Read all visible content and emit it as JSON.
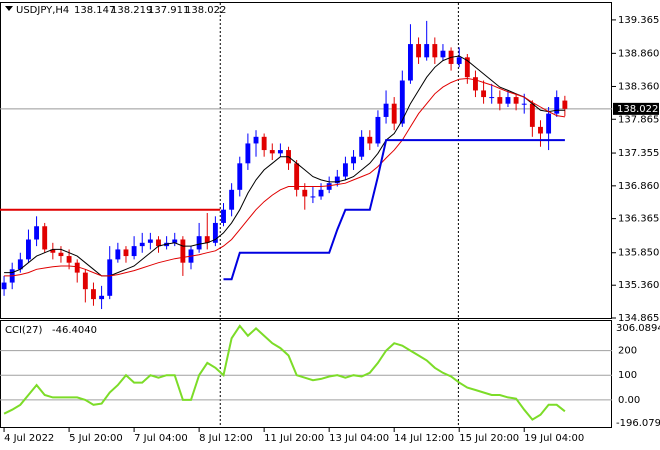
{
  "chart_data": [
    {
      "type": "candlestick",
      "symbol": "USDJPY,H4",
      "bull_color": "#0000ff",
      "bear_color": "#e00000",
      "xlim": [
        -0.5,
        74.8
      ],
      "ylim": [
        134.865,
        139.62
      ],
      "yticks": [
        139.365,
        {
          "value": 138.86,
          "label": "138.860"
        },
        {
          "value": 138.36,
          "label": "138.360"
        },
        137.865,
        137.355,
        {
          "value": 136.86,
          "label": "136.860"
        },
        136.365,
        {
          "value": 135.85,
          "label": "135.850"
        },
        {
          "value": 135.36,
          "label": "135.360"
        },
        134.865
      ],
      "xticks": [
        {
          "value": 0,
          "label": "4 Jul 2022"
        },
        {
          "value": 8,
          "label": "5 Jul 20:00"
        },
        {
          "value": 16,
          "label": "7 Jul 04:00"
        },
        {
          "value": 24,
          "label": "8 Jul 12:00"
        },
        {
          "value": 32,
          "label": "11 Jul 20:00"
        },
        {
          "value": 40,
          "label": "13 Jul 04:00"
        },
        {
          "value": 48,
          "label": "14 Jul 12:00"
        },
        {
          "value": 56,
          "label": "15 Jul 20:00"
        },
        {
          "value": 64,
          "label": "19 Jul 04:00"
        }
      ],
      "period_separators": [
        26.6,
        55.9
      ],
      "ohlc": [
        [
          135.3,
          135.5,
          135.2,
          135.4
        ],
        [
          135.4,
          135.7,
          135.3,
          135.6
        ],
        [
          135.6,
          135.85,
          135.55,
          135.75
        ],
        [
          135.75,
          136.2,
          135.7,
          136.05
        ],
        [
          136.05,
          136.4,
          135.95,
          136.25
        ],
        [
          136.25,
          136.3,
          135.85,
          135.9
        ],
        [
          135.9,
          136.0,
          135.75,
          135.85
        ],
        [
          135.85,
          135.95,
          135.7,
          135.8
        ],
        [
          135.8,
          135.9,
          135.6,
          135.7
        ],
        [
          135.7,
          135.75,
          135.4,
          135.55
        ],
        [
          135.55,
          135.6,
          135.1,
          135.3
        ],
        [
          135.3,
          135.4,
          135.05,
          135.15
        ],
        [
          135.15,
          135.35,
          135.0,
          135.2
        ],
        [
          135.2,
          135.95,
          135.15,
          135.75
        ],
        [
          135.75,
          136.0,
          135.7,
          135.9
        ],
        [
          135.9,
          135.95,
          135.7,
          135.8
        ],
        [
          135.8,
          136.1,
          135.75,
          135.95
        ],
        [
          135.95,
          136.15,
          135.85,
          136.0
        ],
        [
          136.0,
          136.15,
          135.9,
          136.05
        ],
        [
          136.05,
          136.1,
          135.85,
          135.95
        ],
        [
          135.95,
          136.1,
          135.9,
          136.0
        ],
        [
          136.0,
          136.15,
          135.95,
          136.05
        ],
        [
          136.05,
          136.1,
          135.5,
          135.7
        ],
        [
          135.7,
          135.95,
          135.6,
          135.9
        ],
        [
          135.9,
          136.3,
          135.85,
          136.1
        ],
        [
          136.1,
          136.45,
          135.9,
          136.0
        ],
        [
          136.0,
          136.4,
          135.95,
          136.3
        ],
        [
          136.3,
          136.6,
          136.25,
          136.5
        ],
        [
          136.5,
          136.9,
          136.4,
          136.8
        ],
        [
          136.8,
          137.3,
          136.7,
          137.2
        ],
        [
          137.2,
          137.65,
          137.1,
          137.5
        ],
        [
          137.5,
          137.7,
          137.3,
          137.6
        ],
        [
          137.6,
          137.65,
          137.3,
          137.4
        ],
        [
          137.4,
          137.5,
          137.25,
          137.35
        ],
        [
          137.35,
          137.5,
          137.3,
          137.4
        ],
        [
          137.4,
          137.45,
          137.1,
          137.2
        ],
        [
          137.2,
          137.25,
          136.7,
          136.8
        ],
        [
          136.8,
          136.9,
          136.5,
          136.7
        ],
        [
          136.7,
          136.85,
          136.6,
          136.7
        ],
        [
          136.7,
          136.9,
          136.65,
          136.8
        ],
        [
          136.8,
          137.0,
          136.75,
          136.9
        ],
        [
          136.9,
          137.1,
          136.85,
          137.0
        ],
        [
          137.0,
          137.3,
          136.95,
          137.2
        ],
        [
          137.2,
          137.4,
          137.1,
          137.3
        ],
        [
          137.3,
          137.7,
          137.25,
          137.6
        ],
        [
          137.6,
          137.7,
          137.4,
          137.5
        ],
        [
          137.5,
          138.0,
          137.45,
          137.9
        ],
        [
          137.9,
          138.3,
          137.8,
          138.1
        ],
        [
          138.1,
          138.2,
          137.7,
          137.8
        ],
        [
          137.8,
          138.6,
          137.75,
          138.45
        ],
        [
          138.45,
          139.3,
          138.4,
          139.0
        ],
        [
          139.0,
          139.1,
          138.7,
          138.8
        ],
        [
          138.8,
          139.35,
          138.75,
          139.0
        ],
        [
          139.0,
          139.1,
          138.7,
          138.8
        ],
        [
          138.8,
          139.0,
          138.75,
          138.9
        ],
        [
          138.9,
          138.95,
          138.6,
          138.7
        ],
        [
          138.7,
          138.95,
          138.65,
          138.8
        ],
        [
          138.8,
          138.85,
          138.4,
          138.5
        ],
        [
          138.5,
          138.6,
          138.2,
          138.3
        ],
        [
          138.3,
          138.45,
          138.1,
          138.2
        ],
        [
          138.2,
          138.4,
          138.1,
          138.2
        ],
        [
          138.2,
          138.3,
          138.0,
          138.1
        ],
        [
          138.1,
          138.3,
          138.05,
          138.2
        ],
        [
          138.2,
          138.25,
          138.0,
          138.1
        ],
        [
          138.1,
          138.25,
          137.95,
          138.1
        ],
        [
          138.1,
          138.15,
          137.6,
          137.75
        ],
        [
          137.75,
          137.85,
          137.45,
          137.65
        ],
        [
          137.65,
          138.05,
          137.4,
          137.95
        ],
        [
          137.95,
          138.3,
          137.9,
          138.2
        ],
        [
          138.147,
          138.219,
          137.911,
          138.022
        ]
      ],
      "current_price_color": "#000000",
      "series": [
        {
          "color": "#000000",
          "values": [
            135.55,
            135.55,
            135.6,
            135.7,
            135.8,
            135.85,
            135.9,
            135.9,
            135.85,
            135.8,
            135.7,
            135.6,
            135.5,
            135.5,
            135.55,
            135.6,
            135.65,
            135.75,
            135.85,
            135.95,
            135.98,
            136.0,
            135.95,
            135.95,
            135.98,
            136.0,
            136.05,
            136.15,
            136.3,
            136.5,
            136.75,
            136.95,
            137.1,
            137.2,
            137.3,
            137.3,
            137.2,
            137.1,
            137.0,
            136.95,
            136.92,
            136.92,
            136.95,
            137.0,
            137.1,
            137.2,
            137.35,
            137.55,
            137.65,
            137.85,
            138.1,
            138.3,
            138.5,
            138.65,
            138.75,
            138.8,
            138.82,
            138.75,
            138.65,
            138.55,
            138.45,
            138.35,
            138.3,
            138.25,
            138.2,
            138.1,
            138.0,
            137.98,
            138.0,
            138.0
          ]
        },
        {
          "color": "#e00000",
          "values": [
            135.5,
            135.5,
            135.52,
            135.55,
            135.6,
            135.62,
            135.64,
            135.65,
            135.65,
            135.64,
            135.6,
            135.55,
            135.5,
            135.5,
            135.52,
            135.55,
            135.58,
            135.62,
            135.66,
            135.7,
            135.73,
            135.76,
            135.78,
            135.8,
            135.82,
            135.85,
            135.88,
            135.95,
            136.05,
            136.2,
            136.35,
            136.5,
            136.62,
            136.72,
            136.8,
            136.85,
            136.85,
            136.85,
            136.85,
            136.85,
            136.86,
            136.88,
            136.9,
            136.95,
            137.0,
            137.05,
            137.15,
            137.28,
            137.4,
            137.55,
            137.75,
            137.95,
            138.1,
            138.25,
            138.35,
            138.42,
            138.47,
            138.48,
            138.46,
            138.42,
            138.38,
            138.33,
            138.28,
            138.24,
            138.2,
            138.12,
            138.05,
            137.98,
            137.92,
            137.9
          ]
        },
        {
          "color": "#0000e0",
          "width": 2,
          "values": [
            null,
            null,
            null,
            null,
            null,
            null,
            null,
            null,
            null,
            null,
            null,
            null,
            null,
            null,
            null,
            null,
            null,
            null,
            null,
            null,
            null,
            null,
            null,
            null,
            null,
            null,
            null,
            135.45,
            135.45,
            135.85,
            135.85,
            135.85,
            135.85,
            135.85,
            135.85,
            135.85,
            135.85,
            135.85,
            135.85,
            135.85,
            135.85,
            136.2,
            136.5,
            136.5,
            136.5,
            136.5,
            137.0,
            137.55,
            137.55,
            137.55,
            137.55,
            137.55,
            137.55,
            137.55,
            137.55,
            137.55,
            137.55,
            137.55,
            137.55,
            137.55,
            137.55,
            137.55,
            137.55,
            137.55,
            137.55,
            137.55,
            137.55,
            137.55,
            137.55,
            137.55
          ]
        }
      ],
      "levels": [
        {
          "value": 136.5,
          "color": "#e00000",
          "x": [
            -0.5,
            26.6
          ]
        }
      ]
    },
    {
      "type": "line",
      "indicator": "CCI(27)",
      "last_label": "-46.4040",
      "color": "#7cdc28",
      "ylim": [
        -110,
        320
      ],
      "yticks": [
        200,
        100,
        {
          "value": 0,
          "label": "0.00"
        }
      ],
      "range_labels": [
        306.0894,
        -196.0798
      ],
      "values": [
        -56,
        -40,
        -20,
        20,
        60,
        20,
        10,
        10,
        10,
        10,
        0,
        -20,
        -15,
        30,
        60,
        100,
        70,
        70,
        100,
        90,
        100,
        100,
        0,
        0,
        100,
        150,
        130,
        100,
        250,
        300,
        260,
        290,
        260,
        230,
        210,
        180,
        100,
        90,
        80,
        85,
        95,
        100,
        90,
        100,
        95,
        110,
        150,
        200,
        230,
        220,
        200,
        180,
        160,
        130,
        110,
        95,
        70,
        50,
        40,
        30,
        20,
        20,
        10,
        5,
        -40,
        -80,
        -60,
        -20,
        -20,
        -46.404
      ]
    }
  ]
}
